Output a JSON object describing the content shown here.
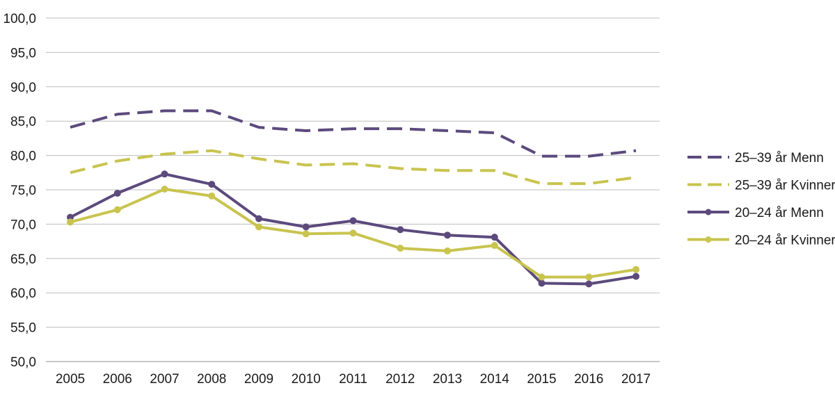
{
  "chart_data": {
    "type": "line",
    "title": "",
    "xlabel": "",
    "ylabel": "",
    "ylim": [
      50,
      100
    ],
    "yticks": [
      "50,0",
      "55,0",
      "60,0",
      "65,0",
      "70,0",
      "75,0",
      "80,0",
      "85,0",
      "90,0",
      "95,0",
      "100,0"
    ],
    "x": [
      "2005",
      "2006",
      "2007",
      "2008",
      "2009",
      "2010",
      "2011",
      "2012",
      "2013",
      "2014",
      "2015",
      "2016",
      "2017"
    ],
    "grid": true,
    "legend_position": "right",
    "series": [
      {
        "name": "25–39 år Menn",
        "color": "#5c4a7d",
        "style": "dashed",
        "markers": false,
        "values": [
          84.1,
          86.0,
          86.5,
          86.5,
          84.1,
          83.6,
          83.9,
          83.9,
          83.6,
          83.3,
          79.9,
          79.9,
          80.7
        ]
      },
      {
        "name": "25–39 år Kvinner",
        "color": "#c8c44e",
        "style": "dashed",
        "markers": false,
        "values": [
          77.5,
          79.2,
          80.2,
          80.7,
          79.5,
          78.6,
          78.8,
          78.1,
          77.8,
          77.8,
          75.9,
          75.9,
          76.8
        ]
      },
      {
        "name": "20–24 år Menn",
        "color": "#5c4a7d",
        "style": "solid",
        "markers": true,
        "values": [
          71.0,
          74.5,
          77.3,
          75.8,
          70.8,
          69.6,
          70.5,
          69.2,
          68.4,
          68.1,
          61.4,
          61.3,
          62.4
        ]
      },
      {
        "name": "20–24 år Kvinner",
        "color": "#c8c44e",
        "style": "solid",
        "markers": true,
        "values": [
          70.3,
          72.1,
          75.1,
          74.1,
          69.6,
          68.6,
          68.7,
          66.5,
          66.1,
          66.9,
          62.3,
          62.3,
          63.4
        ]
      }
    ]
  }
}
